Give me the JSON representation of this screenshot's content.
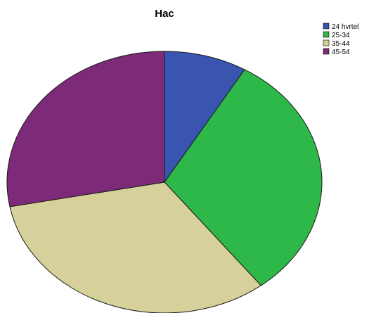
{
  "chart_data": {
    "type": "pie",
    "title": "Hac",
    "categories": [
      "24 hvrtel",
      "25-34",
      "35-44",
      "45-54"
    ],
    "values": [
      8.5,
      31.0,
      32.5,
      28.0
    ],
    "colors": [
      "#3a55b0",
      "#2eb84a",
      "#d6d09a",
      "#7d2a78"
    ],
    "start_angle_deg": 0,
    "direction": "clockwise",
    "legend_position": "top-right"
  }
}
